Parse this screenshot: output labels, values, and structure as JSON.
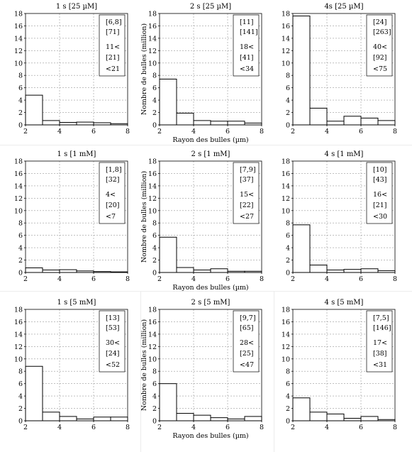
{
  "x_axis_label": "Rayon des bulles (µm)",
  "y_axis_label": "Nombre de bulles (million)",
  "colors": {
    "bar_stroke": "#000000",
    "bar_fill": "#ffffff",
    "grid": "#9a9a9a",
    "axis": "#000000"
  },
  "chart_data": [
    {
      "type": "bar",
      "title": "1 s [25 µM]",
      "xlim": [
        2,
        8
      ],
      "ylim": [
        0,
        18
      ],
      "x_ticks": [
        "2",
        "4",
        "6",
        "8"
      ],
      "y_ticks": [
        "0",
        "2",
        "4",
        "6",
        "8",
        "10",
        "12",
        "14",
        "16",
        "18"
      ],
      "bin_width": 1,
      "bin_starts": [
        2,
        3,
        4,
        5,
        6,
        7
      ],
      "values": [
        4.8,
        0.7,
        0.4,
        0.45,
        0.35,
        0.2
      ],
      "legend": [
        "[6,8]",
        "[71]",
        "11<",
        "[21]",
        "<21"
      ],
      "xlabel": "",
      "ylabel": ""
    },
    {
      "type": "bar",
      "title": "2 s [25 µM]",
      "xlim": [
        2,
        8
      ],
      "ylim": [
        0,
        18
      ],
      "x_ticks": [
        "2",
        "4",
        "6",
        "8"
      ],
      "y_ticks": [
        "0",
        "2",
        "4",
        "6",
        "8",
        "10",
        "12",
        "14",
        "16",
        "18"
      ],
      "bin_width": 1,
      "bin_starts": [
        2,
        3,
        4,
        5,
        6,
        7
      ],
      "values": [
        7.4,
        1.9,
        0.7,
        0.6,
        0.6,
        0.3
      ],
      "legend": [
        "[11]",
        "[141]",
        "18<",
        "[41]",
        "<34"
      ],
      "xlabel": "Rayon des bulles (µm)",
      "ylabel": "Nombre de bulles (million)"
    },
    {
      "type": "bar",
      "title": "4s [25 µM]",
      "xlim": [
        2,
        8
      ],
      "ylim": [
        0,
        18
      ],
      "x_ticks": [
        "2",
        "4",
        "6",
        "8"
      ],
      "y_ticks": [
        "0",
        "2",
        "4",
        "6",
        "8",
        "10",
        "12",
        "14",
        "16",
        "18"
      ],
      "bin_width": 1,
      "bin_starts": [
        2,
        3,
        4,
        5,
        6,
        7
      ],
      "values": [
        17.6,
        2.7,
        0.6,
        1.4,
        1.1,
        0.7
      ],
      "legend": [
        "[24]",
        "[263]",
        "40<",
        "[92]",
        "<75"
      ],
      "xlabel": "",
      "ylabel": ""
    },
    {
      "type": "bar",
      "title": "1 s [1 mM]",
      "xlim": [
        2,
        8
      ],
      "ylim": [
        0,
        18
      ],
      "x_ticks": [
        "2",
        "4",
        "6",
        "8"
      ],
      "y_ticks": [
        "0",
        "2",
        "4",
        "6",
        "8",
        "10",
        "12",
        "14",
        "16",
        "18"
      ],
      "bin_width": 1,
      "bin_starts": [
        2,
        3,
        4,
        5,
        6,
        7
      ],
      "values": [
        0.75,
        0.4,
        0.45,
        0.25,
        0.15,
        0.1
      ],
      "legend": [
        "[1,8]",
        "[32]",
        "4<",
        "[20]",
        "<7"
      ],
      "xlabel": "",
      "ylabel": ""
    },
    {
      "type": "bar",
      "title": "2 s [1 mM]",
      "xlim": [
        2,
        8
      ],
      "ylim": [
        0,
        18
      ],
      "x_ticks": [
        "2",
        "4",
        "6",
        "8"
      ],
      "y_ticks": [
        "0",
        "2",
        "4",
        "6",
        "8",
        "10",
        "12",
        "14",
        "16",
        "18"
      ],
      "bin_width": 1,
      "bin_starts": [
        2,
        3,
        4,
        5,
        6,
        7
      ],
      "values": [
        5.7,
        0.8,
        0.4,
        0.6,
        0.2,
        0.2
      ],
      "legend": [
        "[7,9]",
        "[37]",
        "15<",
        "[22]",
        "<27"
      ],
      "xlabel": "Rayon des bulles (µm)",
      "ylabel": "Nombre de bulles (million)"
    },
    {
      "type": "bar",
      "title": "4 s [1 mM]",
      "xlim": [
        2,
        8
      ],
      "ylim": [
        0,
        18
      ],
      "x_ticks": [
        "2",
        "4",
        "6",
        "8"
      ],
      "y_ticks": [
        "0",
        "2",
        "4",
        "6",
        "8",
        "10",
        "12",
        "14",
        "16",
        "18"
      ],
      "bin_width": 1,
      "bin_starts": [
        2,
        3,
        4,
        5,
        6,
        7
      ],
      "values": [
        7.7,
        1.2,
        0.4,
        0.5,
        0.6,
        0.3
      ],
      "legend": [
        "[10]",
        "[43]",
        "16<",
        "[21]",
        "<30"
      ],
      "xlabel": "",
      "ylabel": ""
    },
    {
      "type": "bar",
      "title": "1 s [5 mM]",
      "xlim": [
        2,
        8
      ],
      "ylim": [
        0,
        18
      ],
      "x_ticks": [
        "2",
        "4",
        "6",
        "8"
      ],
      "y_ticks": [
        "0",
        "2",
        "4",
        "6",
        "8",
        "10",
        "12",
        "14",
        "16",
        "18"
      ],
      "bin_width": 1,
      "bin_starts": [
        2,
        3,
        4,
        5,
        6,
        7
      ],
      "values": [
        8.8,
        1.4,
        0.7,
        0.3,
        0.6,
        0.6
      ],
      "legend": [
        "[13]",
        "[53]",
        "30<",
        "[24]",
        "<52"
      ],
      "xlabel": "",
      "ylabel": ""
    },
    {
      "type": "bar",
      "title": "2 s [5 mM]",
      "xlim": [
        2,
        8
      ],
      "ylim": [
        0,
        18
      ],
      "x_ticks": [
        "2",
        "4",
        "6",
        "8"
      ],
      "y_ticks": [
        "0",
        "2",
        "4",
        "6",
        "8",
        "10",
        "12",
        "14",
        "16",
        "18"
      ],
      "bin_width": 1,
      "bin_starts": [
        2,
        3,
        4,
        5,
        6,
        7
      ],
      "values": [
        6.0,
        1.2,
        0.9,
        0.5,
        0.3,
        0.7
      ],
      "legend": [
        "[9,7]",
        "[65]",
        "28<",
        "[25]",
        "<47"
      ],
      "xlabel": "Rayon des bulles (µm)",
      "ylabel": "Nombre de bulles (million)"
    },
    {
      "type": "bar",
      "title": "4 s [5 mM]",
      "xlim": [
        2,
        8
      ],
      "ylim": [
        0,
        18
      ],
      "x_ticks": [
        "2",
        "4",
        "6",
        "8"
      ],
      "y_ticks": [
        "0",
        "2",
        "4",
        "6",
        "8",
        "10",
        "12",
        "14",
        "16",
        "18"
      ],
      "bin_width": 1,
      "bin_starts": [
        2,
        3,
        4,
        5,
        6,
        7
      ],
      "values": [
        3.7,
        1.4,
        1.1,
        0.4,
        0.7,
        0.2
      ],
      "legend": [
        "[7,5]",
        "[146]",
        "17<",
        "[38]",
        "<31"
      ],
      "xlabel": "",
      "ylabel": ""
    }
  ]
}
